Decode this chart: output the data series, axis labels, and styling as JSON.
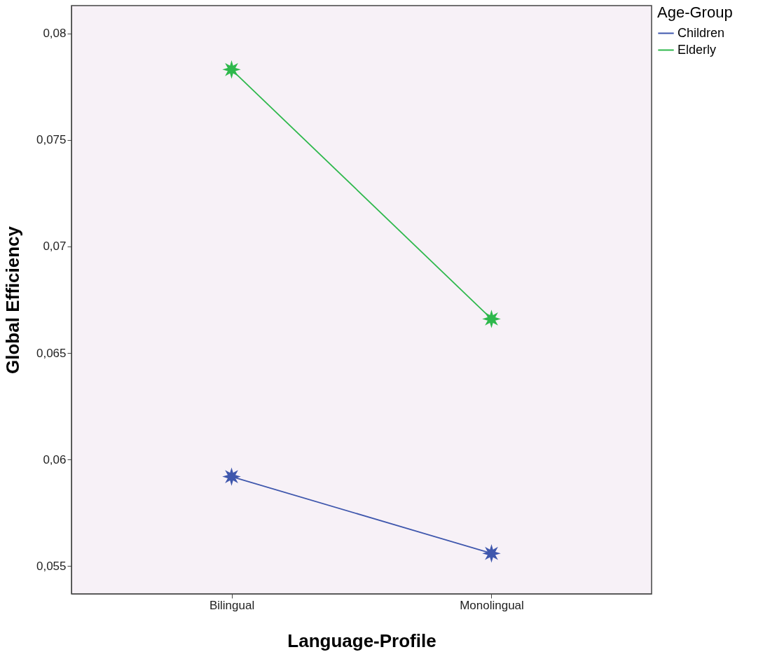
{
  "chart_data": {
    "type": "line",
    "xlabel": "Language-Profile",
    "ylabel": "Global Efficiency",
    "legend_title": "Age-Group",
    "categories": [
      "Bilingual",
      "Monolingual"
    ],
    "series": [
      {
        "name": "Children",
        "color": "#3f57ad",
        "values": [
          0.0592,
          0.0556
        ]
      },
      {
        "name": "Elderly",
        "color": "#2eb84c",
        "values": [
          0.0783,
          0.0666
        ]
      }
    ],
    "ylim": [
      0.0537,
      0.0813
    ],
    "yticks": [
      {
        "value": 0.055,
        "label": "0,055"
      },
      {
        "value": 0.06,
        "label": "0,06"
      },
      {
        "value": 0.065,
        "label": "0,065"
      },
      {
        "value": 0.07,
        "label": "0,07"
      },
      {
        "value": 0.075,
        "label": "0,075"
      },
      {
        "value": 0.08,
        "label": "0,08"
      }
    ],
    "marker": "star",
    "line_style": "solid",
    "legend": "top right",
    "grid": false
  }
}
